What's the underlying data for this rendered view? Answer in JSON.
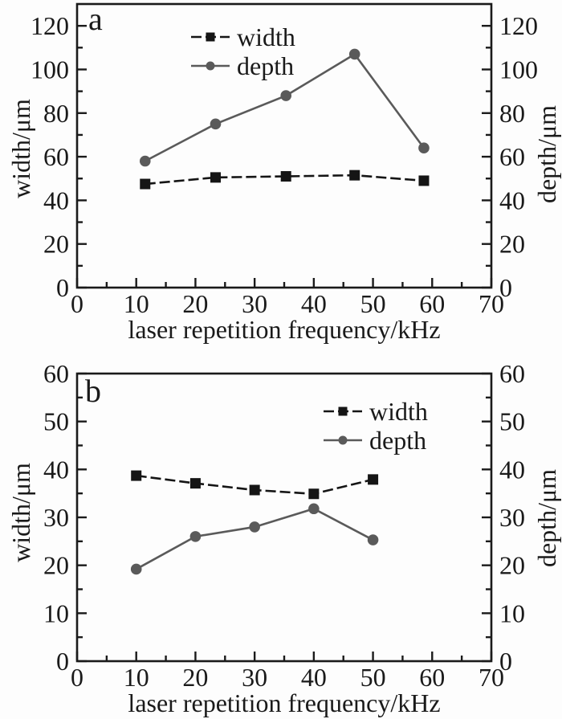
{
  "figure": {
    "background": "#fdfdfd",
    "ink": "#1a1a1a",
    "series_colors": {
      "width": "#151515",
      "depth": "#5a5a5a"
    }
  },
  "chart_data": [
    {
      "type": "line",
      "panel_label": "a",
      "xlabel": "laser repetition frequency/kHz",
      "ylabel_left": "width/μm",
      "ylabel_right": "depth/μm",
      "xlim": [
        0,
        70
      ],
      "ylim": [
        0,
        130
      ],
      "x_major_ticks": [
        0,
        10,
        20,
        30,
        40,
        50,
        60,
        70
      ],
      "x_minor_step": 5,
      "y_major_ticks": [
        0,
        20,
        40,
        60,
        80,
        100,
        120
      ],
      "y_minor_step": 10,
      "grid": false,
      "legend_position": "inside-top-center",
      "series": [
        {
          "name": "width",
          "marker": "square",
          "color": "#151515",
          "line_style": "dashed",
          "x": [
            11.5,
            23.4,
            35.3,
            46.9,
            58.6
          ],
          "y": [
            47.5,
            50.5,
            51,
            51.5,
            49
          ]
        },
        {
          "name": "depth",
          "marker": "circle",
          "color": "#5a5a5a",
          "line_style": "solid",
          "x": [
            11.5,
            23.4,
            35.3,
            46.9,
            58.6
          ],
          "y": [
            58,
            75,
            88,
            107,
            64
          ]
        }
      ]
    },
    {
      "type": "line",
      "panel_label": "b",
      "xlabel": "laser repetition frequency/kHz",
      "ylabel_left": "width/μm",
      "ylabel_right": "depth/μm",
      "xlim": [
        0,
        70
      ],
      "ylim": [
        0,
        60
      ],
      "x_major_ticks": [
        0,
        10,
        20,
        30,
        40,
        50,
        60,
        70
      ],
      "x_minor_step": 5,
      "y_major_ticks": [
        0,
        10,
        20,
        30,
        40,
        50,
        60
      ],
      "y_minor_step": 5,
      "grid": false,
      "legend_position": "inside-top-right",
      "series": [
        {
          "name": "width",
          "marker": "square",
          "color": "#151515",
          "line_style": "dashed",
          "x": [
            10,
            20,
            30,
            40,
            50
          ],
          "y": [
            38.7,
            37.1,
            35.7,
            34.9,
            37.9
          ]
        },
        {
          "name": "depth",
          "marker": "circle",
          "color": "#5a5a5a",
          "line_style": "solid",
          "x": [
            10,
            20,
            30,
            40,
            50
          ],
          "y": [
            19.2,
            26,
            28,
            31.8,
            25.3
          ]
        }
      ]
    }
  ]
}
